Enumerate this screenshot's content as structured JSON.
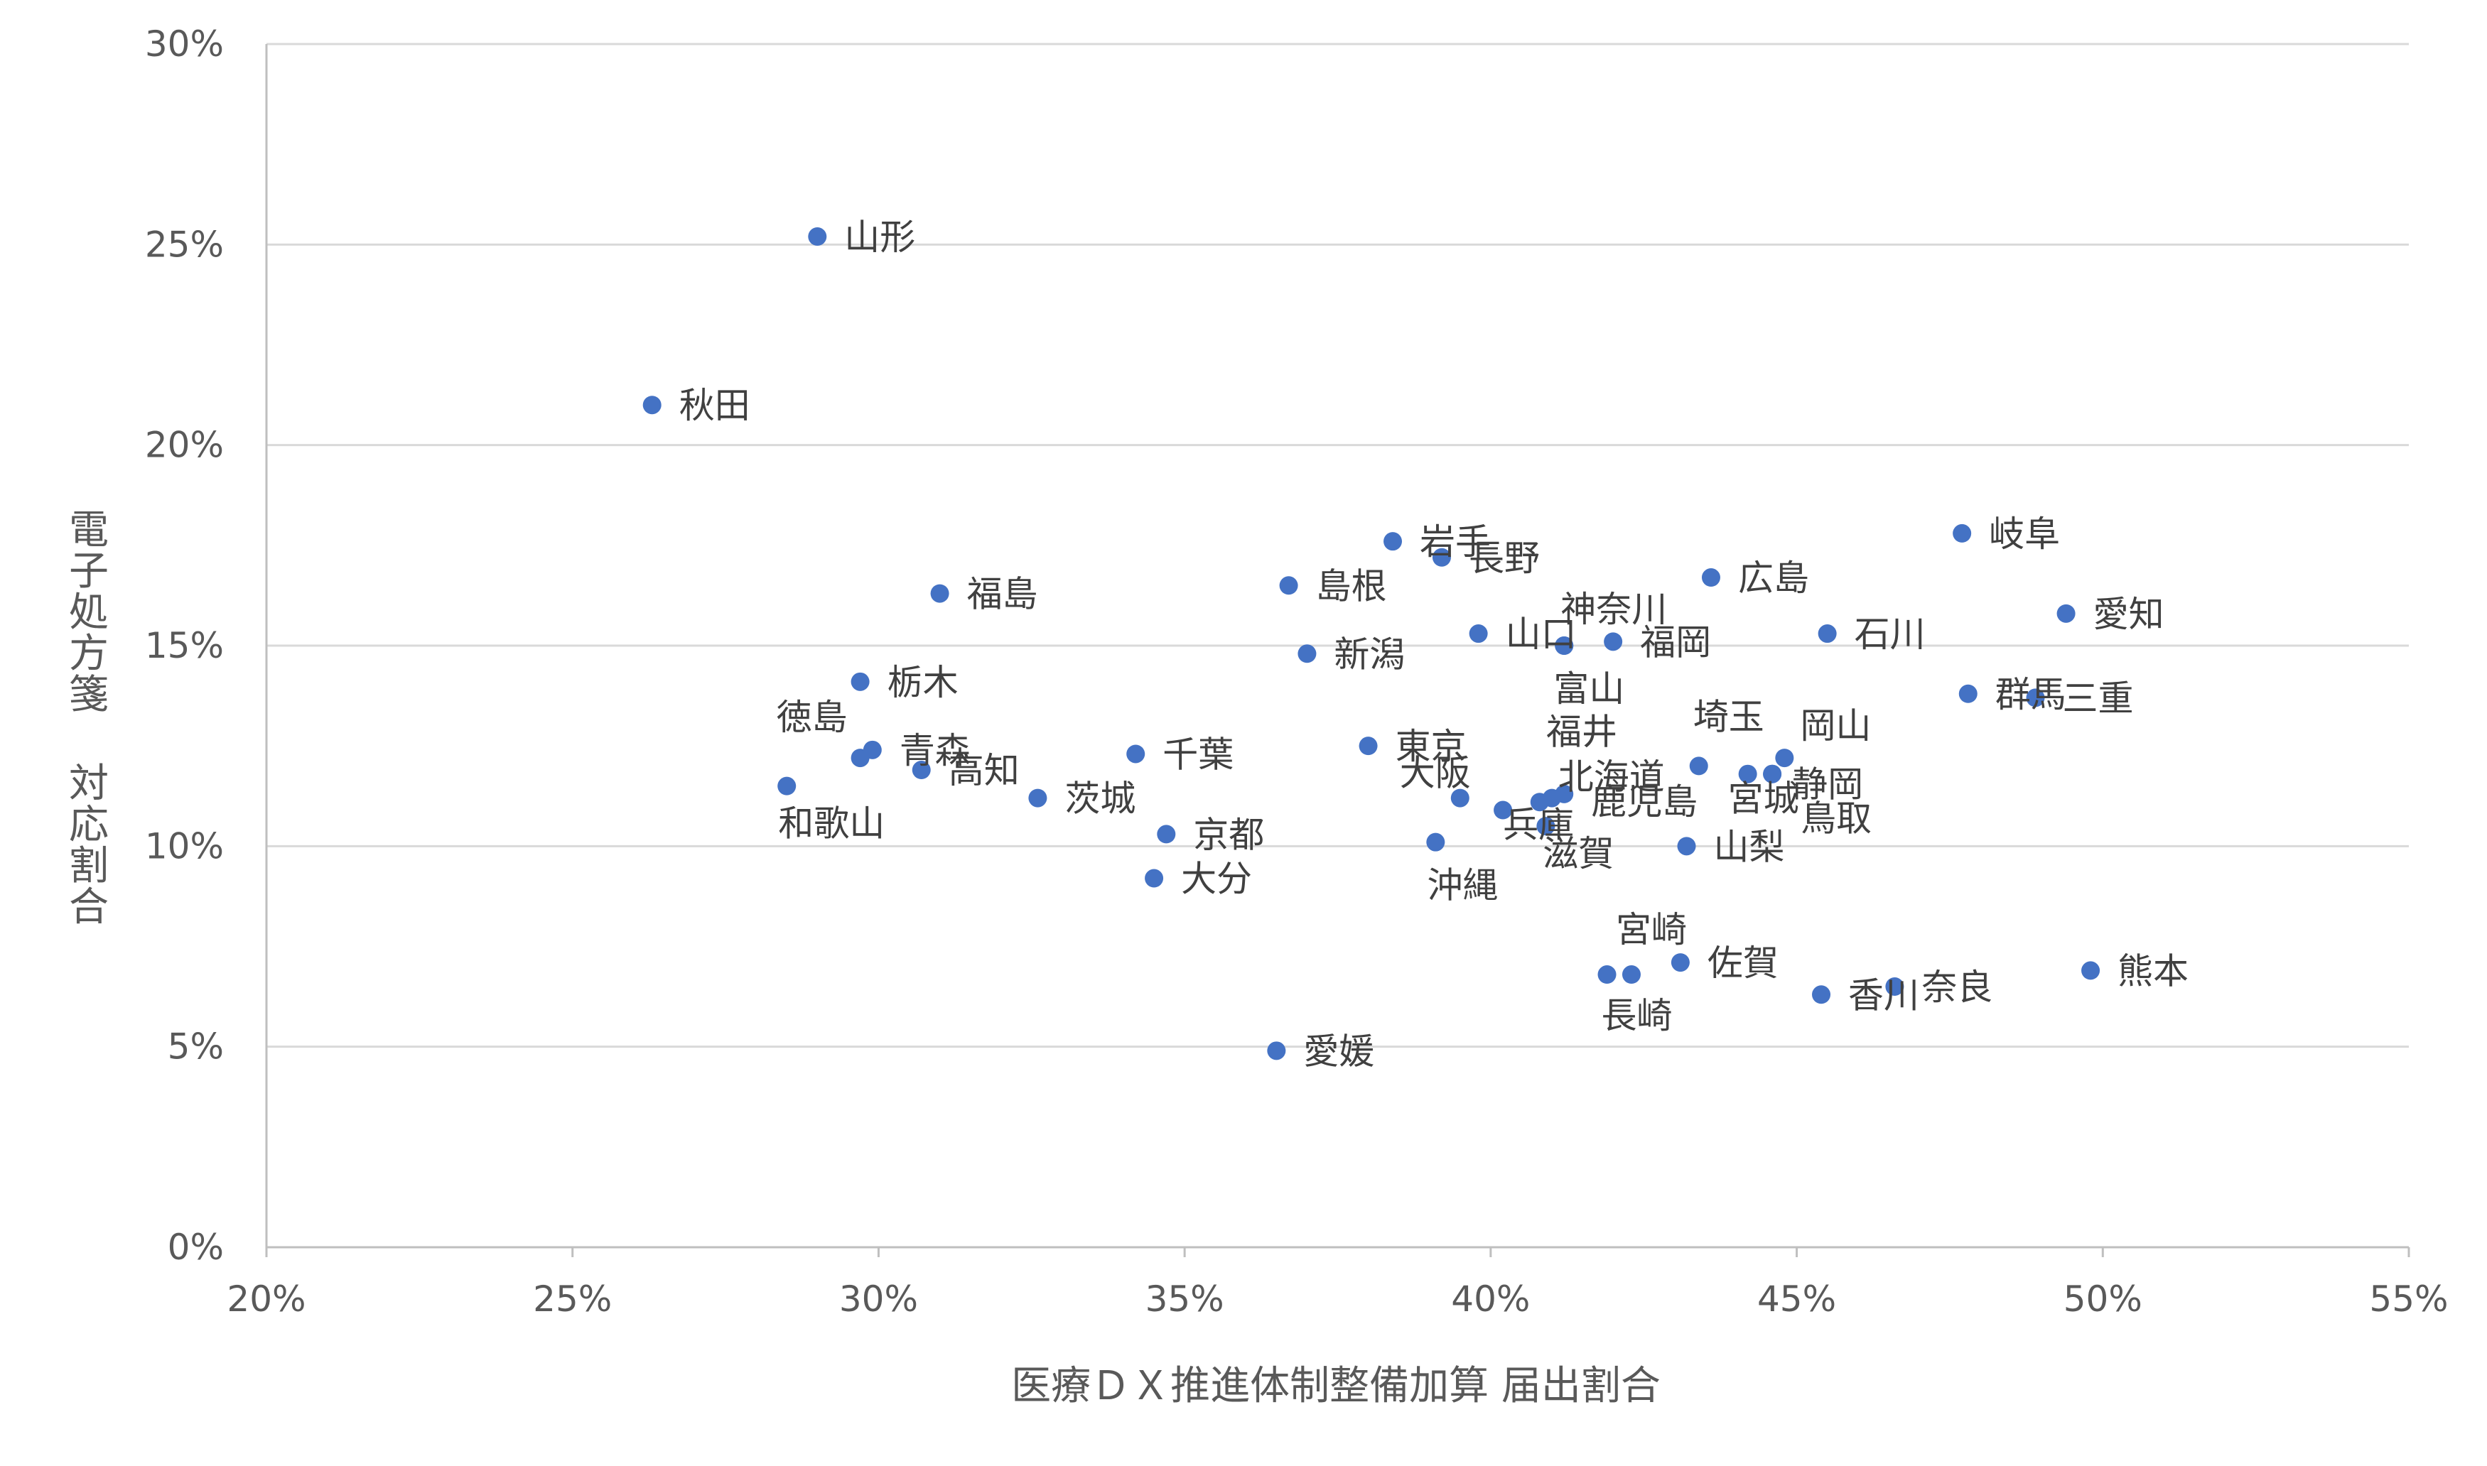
{
  "chart_data": {
    "type": "scatter",
    "xlabel": "医療ＤＸ推進体制整備加算 届出割合",
    "ylabel": "電子処方箋 対応割合",
    "xlim": [
      0.2,
      0.55
    ],
    "ylim": [
      0.0,
      0.3
    ],
    "x_ticks": [
      0.2,
      0.25,
      0.3,
      0.35,
      0.4,
      0.45,
      0.5,
      0.55
    ],
    "y_ticks": [
      0.0,
      0.05,
      0.1,
      0.15,
      0.2,
      0.25,
      0.3
    ],
    "x_tick_labels": [
      "20%",
      "25%",
      "30%",
      "35%",
      "40%",
      "45%",
      "50%",
      "55%"
    ],
    "y_tick_labels": [
      "0%",
      "5%",
      "10%",
      "15%",
      "20%",
      "25%",
      "30%"
    ],
    "grid": "horizontal",
    "legend": "none",
    "marker_color": "#4472c4",
    "points": [
      {
        "label": "山形",
        "x": 0.29,
        "y": 0.252
      },
      {
        "label": "秋田",
        "x": 0.263,
        "y": 0.21
      },
      {
        "label": "福島",
        "x": 0.31,
        "y": 0.163
      },
      {
        "label": "栃木",
        "x": 0.297,
        "y": 0.141
      },
      {
        "label": "徳島",
        "x": 0.297,
        "y": 0.122
      },
      {
        "label": "青森",
        "x": 0.299,
        "y": 0.124
      },
      {
        "label": "高知",
        "x": 0.307,
        "y": 0.119
      },
      {
        "label": "和歌山",
        "x": 0.285,
        "y": 0.115
      },
      {
        "label": "茨城",
        "x": 0.326,
        "y": 0.112
      },
      {
        "label": "千葉",
        "x": 0.342,
        "y": 0.123
      },
      {
        "label": "京都",
        "x": 0.347,
        "y": 0.103
      },
      {
        "label": "大分",
        "x": 0.345,
        "y": 0.092
      },
      {
        "label": "愛媛",
        "x": 0.365,
        "y": 0.049
      },
      {
        "label": "島根",
        "x": 0.367,
        "y": 0.165
      },
      {
        "label": "新潟",
        "x": 0.37,
        "y": 0.148
      },
      {
        "label": "岩手",
        "x": 0.384,
        "y": 0.176
      },
      {
        "label": "長野",
        "x": 0.392,
        "y": 0.172
      },
      {
        "label": "東京",
        "x": 0.38,
        "y": 0.125
      },
      {
        "label": "沖縄",
        "x": 0.391,
        "y": 0.101
      },
      {
        "label": "大阪",
        "x": 0.395,
        "y": 0.112
      },
      {
        "label": "山口",
        "x": 0.398,
        "y": 0.153
      },
      {
        "label": "神奈川",
        "x": 0.412,
        "y": 0.15
      },
      {
        "label": "富山",
        "x": 0.412,
        "y": 0.15
      },
      {
        "label": "福岡",
        "x": 0.42,
        "y": 0.151
      },
      {
        "label": "兵庫",
        "x": 0.402,
        "y": 0.109
      },
      {
        "label": "滋賀",
        "x": 0.409,
        "y": 0.105
      },
      {
        "label": "北海道",
        "x": 0.408,
        "y": 0.111
      },
      {
        "label": "鹿児島",
        "x": 0.412,
        "y": 0.113
      },
      {
        "label": "福井",
        "x": 0.41,
        "y": 0.112
      },
      {
        "label": "埼玉",
        "x": 0.434,
        "y": 0.12
      },
      {
        "label": "宮城",
        "x": 0.442,
        "y": 0.118
      },
      {
        "label": "鳥取",
        "x": 0.446,
        "y": 0.118
      },
      {
        "label": "岡山",
        "x": 0.448,
        "y": 0.122
      },
      {
        "label": "静岡",
        "x": 0.446,
        "y": 0.118
      },
      {
        "label": "山梨",
        "x": 0.432,
        "y": 0.1
      },
      {
        "label": "広島",
        "x": 0.436,
        "y": 0.167
      },
      {
        "label": "石川",
        "x": 0.455,
        "y": 0.153
      },
      {
        "label": "宮崎",
        "x": 0.423,
        "y": 0.068
      },
      {
        "label": "佐賀",
        "x": 0.431,
        "y": 0.071
      },
      {
        "label": "長崎",
        "x": 0.419,
        "y": 0.068
      },
      {
        "label": "香川",
        "x": 0.454,
        "y": 0.063
      },
      {
        "label": "奈良",
        "x": 0.466,
        "y": 0.065
      },
      {
        "label": "岐阜",
        "x": 0.477,
        "y": 0.178
      },
      {
        "label": "群馬",
        "x": 0.478,
        "y": 0.138
      },
      {
        "label": "三重",
        "x": 0.489,
        "y": 0.137
      },
      {
        "label": "愛知",
        "x": 0.494,
        "y": 0.158
      },
      {
        "label": "熊本",
        "x": 0.498,
        "y": 0.069
      }
    ]
  }
}
